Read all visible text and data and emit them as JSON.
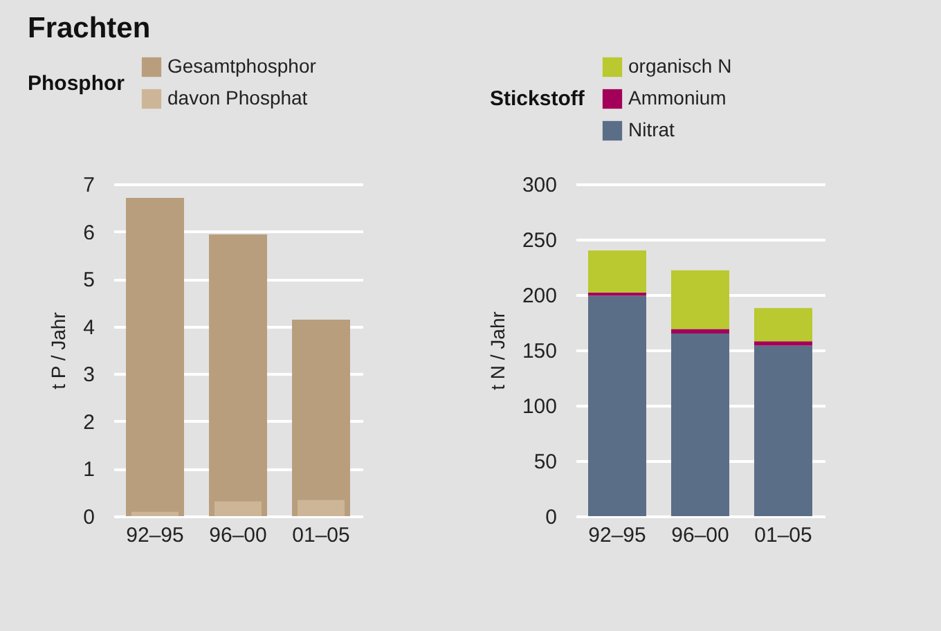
{
  "chart_data": [
    {
      "type": "bar",
      "title": "Frachten",
      "legend_title": "Phosphor",
      "ylabel": "t P / Jahr",
      "categories": [
        "92–95",
        "96–00",
        "01–05"
      ],
      "stacked": false,
      "legend": "top left",
      "grid": "y",
      "ylim": [
        0,
        7
      ],
      "yticks": [
        0,
        1,
        2,
        3,
        4,
        5,
        6,
        7
      ],
      "series": [
        {
          "name": "Gesamtphosphor",
          "color": "#b99e7e",
          "values": [
            6.71,
            5.94,
            4.14
          ]
        },
        {
          "name": "davon Phosphat",
          "color": "#cdb697",
          "values": [
            0.09,
            0.31,
            0.34
          ]
        }
      ]
    },
    {
      "type": "bar",
      "legend_title": "Stickstoff",
      "ylabel": "t N / Jahr",
      "categories": [
        "92–95",
        "96–00",
        "01–05"
      ],
      "stacked": true,
      "legend": "top left",
      "grid": "y",
      "ylim": [
        0,
        300
      ],
      "yticks": [
        0,
        50,
        100,
        150,
        200,
        250,
        300
      ],
      "series": [
        {
          "name": "Nitrat",
          "color": "#5b6e87",
          "values": [
            199,
            165,
            154
          ]
        },
        {
          "name": "Ammonium",
          "color": "#a3005a",
          "values": [
            3,
            4,
            4
          ]
        },
        {
          "name": "organisch N",
          "color": "#b9c92f",
          "values": [
            38,
            53,
            30
          ]
        }
      ]
    }
  ]
}
